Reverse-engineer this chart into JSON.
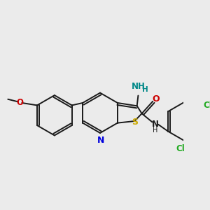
{
  "bg": "#ebebeb",
  "lw": 1.4,
  "doffset": 3.5,
  "atom_colors": {
    "N": "#0000dd",
    "S": "#ccaa00",
    "O": "#cc0000",
    "Cl": "#22aa22",
    "NH2": "#008888",
    "C": "#1a1a1a",
    "NH": "#1a1a1a"
  },
  "font_size": 8.5
}
